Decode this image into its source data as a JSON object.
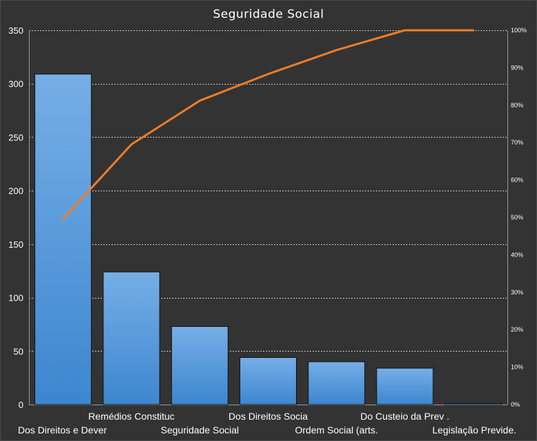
{
  "chart_data": {
    "type": "bar",
    "title": "Seguridade Social",
    "xlabel": "",
    "ylabel": "",
    "categories": [
      "Dos Direitos e Dever",
      "Remédios Constituc",
      "Seguridade Social",
      "Dos Direitos Socia",
      "Ordem Social (arts.",
      "Do Custeio da Prev .",
      "Legislação Previde."
    ],
    "series": [
      {
        "type": "bar",
        "values": [
          309,
          124,
          73,
          44,
          40,
          34,
          1
        ],
        "axis": "left",
        "color": "#4a90d9"
      },
      {
        "type": "line",
        "values": [
          49.6,
          69.5,
          81.2,
          88.3,
          94.7,
          100,
          100
        ],
        "axis": "right",
        "color": "#f07d28"
      }
    ],
    "y_left": {
      "ylim": [
        0,
        350
      ],
      "ticks": [
        "0",
        "50",
        "100",
        "150",
        "200",
        "250",
        "300",
        "350"
      ]
    },
    "y_right": {
      "ylim": [
        0,
        100
      ],
      "ticks": [
        "0%",
        "10%",
        "20%",
        "30%",
        "40%",
        "50%",
        "60%",
        "70%",
        "80%",
        "90%",
        "100%"
      ]
    },
    "grid": true,
    "legend": "none"
  }
}
